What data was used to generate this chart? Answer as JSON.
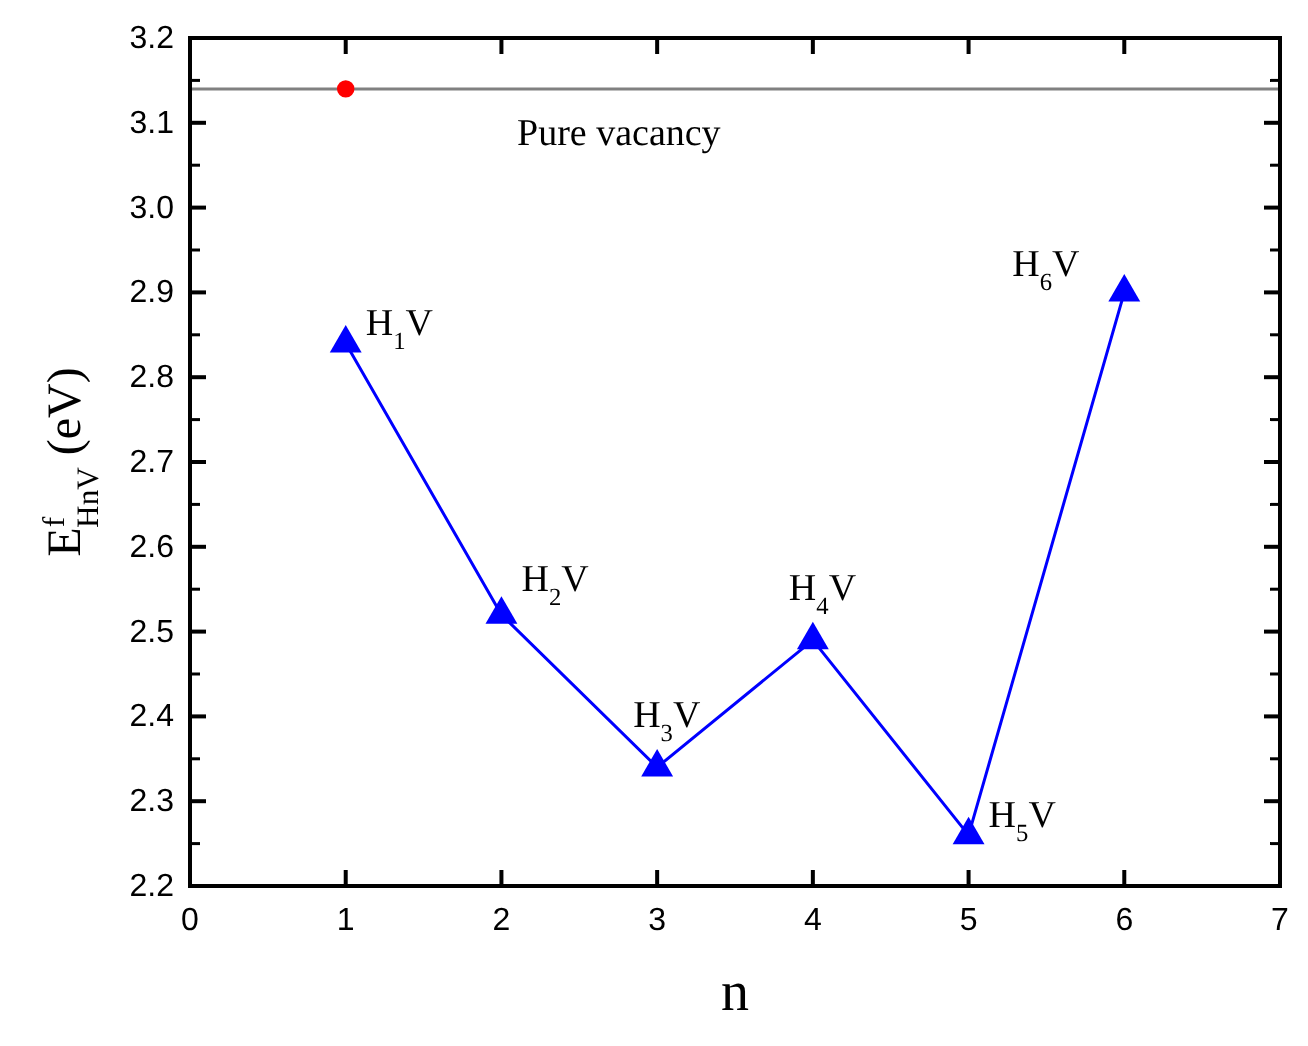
{
  "chart_data": {
    "type": "line",
    "xlabel": "n",
    "ylabel": "E$^{f}$$_{HnV}$ (eV)",
    "x": [
      1,
      2,
      3,
      4,
      5,
      6
    ],
    "series": [
      {
        "color": "#0000ff",
        "marker": "triangle",
        "values": [
          2.84,
          2.52,
          2.34,
          2.49,
          2.26,
          2.9
        ]
      },
      {
        "type": "scatter",
        "color": "#ff0000",
        "marker": "circle",
        "x": [
          1
        ],
        "values": [
          3.14
        ]
      }
    ],
    "xlim": [
      0,
      7
    ],
    "xticks": [
      0,
      1,
      2,
      3,
      4,
      5,
      6,
      7
    ],
    "ylim": [
      2.2,
      3.2
    ],
    "yticks": [
      2.2,
      2.3,
      2.4,
      2.5,
      2.6,
      2.7,
      2.8,
      2.9,
      {
        "value": 3,
        "label": "3.0"
      },
      3.1,
      3.2
    ],
    "ref_lines": [
      {
        "axis": "y",
        "value": 3.14,
        "label": "Pure vacancy",
        "color": "#808080"
      }
    ],
    "annotations": [
      {
        "text": "H$_{1}$V",
        "x": 1,
        "y": 2.84
      },
      {
        "text": "H$_{2}$V",
        "x": 2,
        "y": 2.52
      },
      {
        "text": "H$_{3}$V",
        "x": 3,
        "y": 2.34
      },
      {
        "text": "H$_{4}$V",
        "x": 4,
        "y": 2.49
      },
      {
        "text": "H$_{5}$V",
        "x": 5,
        "y": 2.26
      },
      {
        "text": "H$_{6}$V",
        "x": 6,
        "y": 2.9
      }
    ],
    "grid": false
  }
}
